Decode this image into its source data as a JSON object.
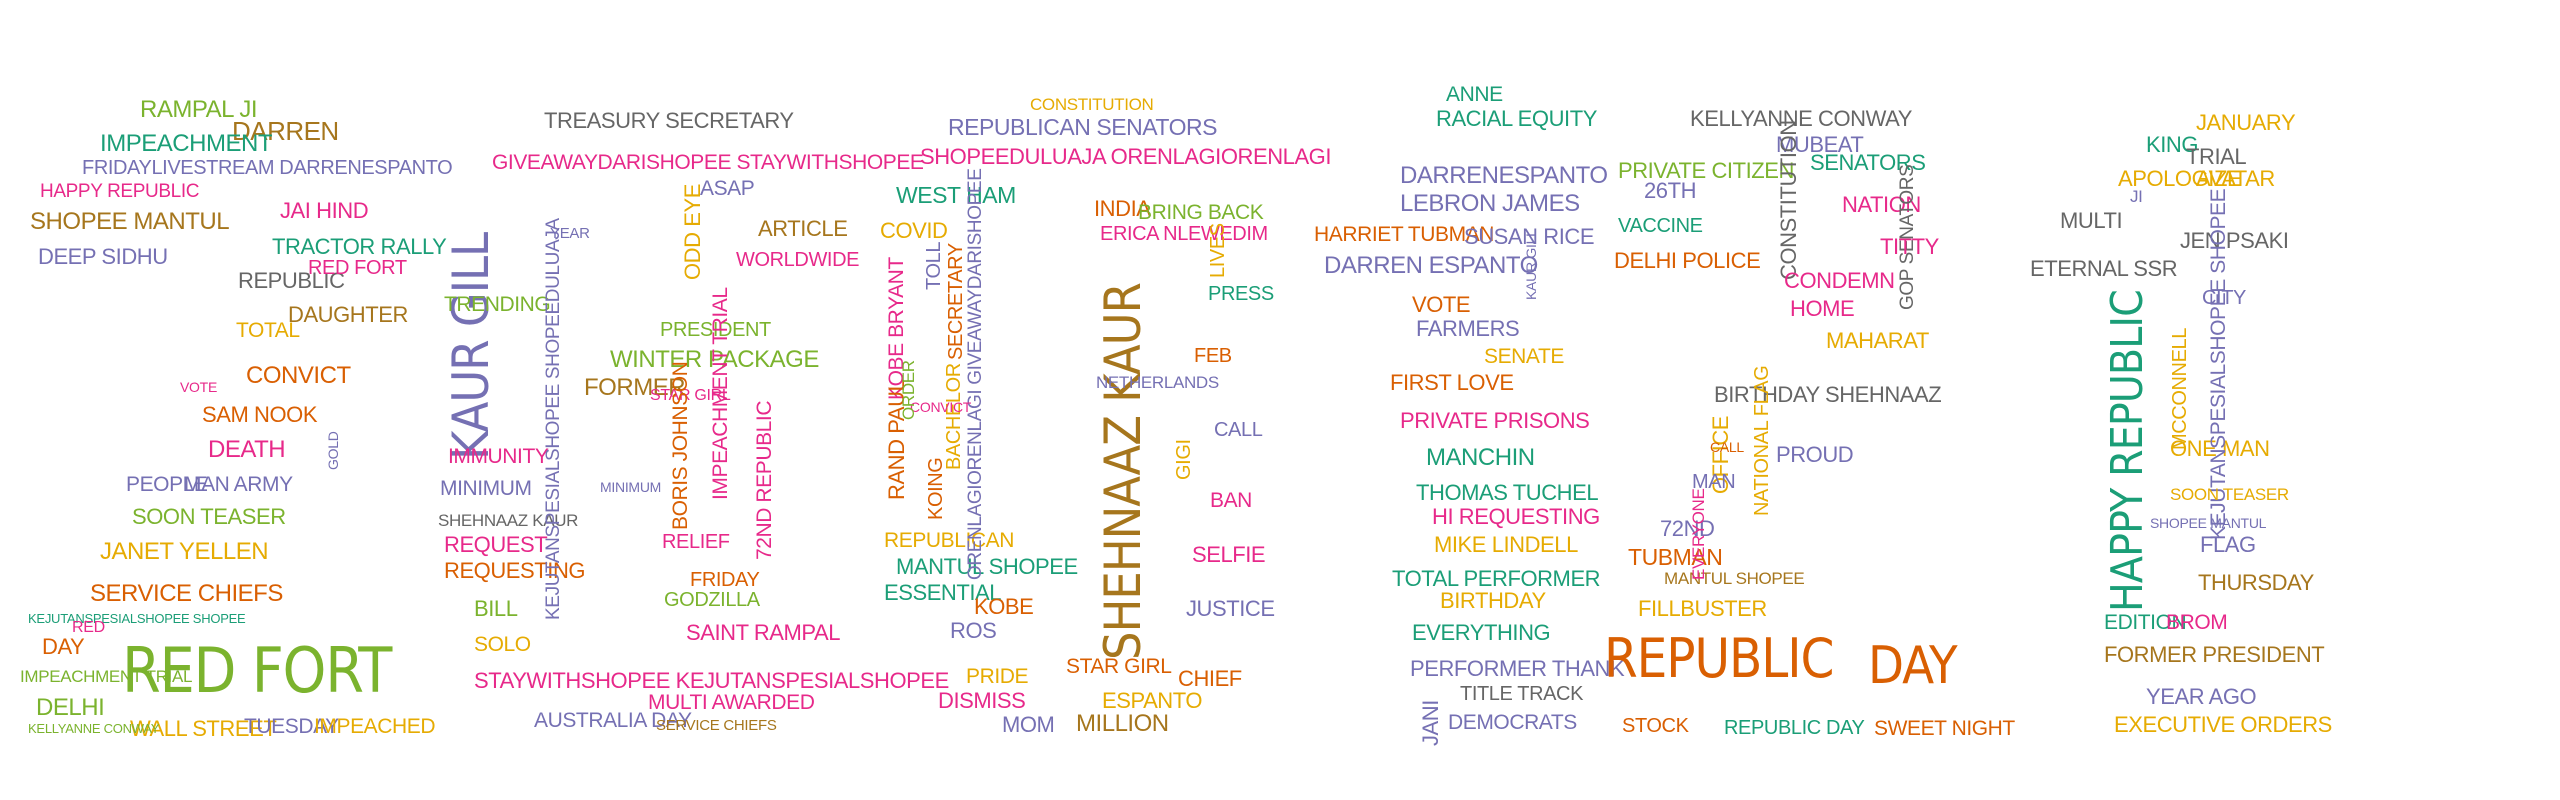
{
  "colors": {
    "green": "#7bb32e",
    "orange": "#e07b1a",
    "teal": "#1b9e77",
    "purple": "#7570b3",
    "pink": "#e7298a",
    "olive": "#a6761d",
    "gray": "#666666",
    "gold": "#e6ab02",
    "burnt": "#d95f02"
  },
  "words": {
    "w001": "RAMPAL JI",
    "w002": "DARREN",
    "w003": "IMPEACHMENT",
    "w004": "FRIDAYLIVESTREAM DARRENESPANTO",
    "w005": "HAPPY REPUBLIC",
    "w006": "SHOPEE MANTUL",
    "w007": "DEEP SIDHU",
    "w008": "JAI HIND",
    "w009": "TRACTOR RALLY",
    "w010": "REPUBLIC",
    "w011": "RED FORT",
    "w012": "DAUGHTER",
    "w013": "TOTAL",
    "w014": "CONVICT",
    "w015": "SAM NOOK",
    "w016": "DEATH",
    "w017": "PEOPLE",
    "w018": "MAN ARMY",
    "w019": "SOON TEASER",
    "w020": "JANET YELLEN",
    "w021": "SERVICE CHIEFS",
    "w022": "KEJUTANSPESIALSHOPEE SHOPEE",
    "w023": "RED FORT",
    "w024": "IMPEACHMENT TRIAL",
    "w025": "DELHI",
    "w026": "WALL STREET",
    "w027": "TUESDAY",
    "w028": "IMPEACHED",
    "w029": "KELLYANNE CONWAY",
    "w030": "TREASURY SECRETARY",
    "w031": "GIVEAWAYDARISHOPEE STAYWITHSHOPEE",
    "w032": "KAUR GILL",
    "w033": "TRENDING",
    "w034": "ASAP",
    "w035": "ARTICLE",
    "w036": "WORLDWIDE",
    "w037": "ODD EYE",
    "w038": "PRESIDENT",
    "w039": "WINTER PACKAGE",
    "w040": "FORMER",
    "w041": "STAR GIRL",
    "w042": "IMMUNITY",
    "w043": "MINIMUM",
    "w044": "SHEHNAAZ KAUR",
    "w045": "REQUEST",
    "w046": "REQUESTING",
    "w047": "BILL",
    "w048": "SOLO",
    "w049": "BORIS JOHNSON",
    "w050": "IMPEACHMENT TRIAL",
    "w051": "RELIEF",
    "w052": "FRIDAY",
    "w053": "GODZILLA",
    "w054": "SAINT RAMPAL",
    "w055": "STAYWITHSHOPEE KEJUTANSPESIALSHOPEE",
    "w056": "MULTI AWARDED",
    "w057": "AUSTRALIA DAY",
    "w058": "SERVICE CHIEFS",
    "w059": "KEJUTANSPESIALSHOPEE SHOPEEDULUAJA",
    "w060": "72ND REPUBLIC",
    "w061": "CONSTITUTION",
    "w062": "REPUBLICAN SENATORS",
    "w063": "SHOPEEDULUAJA ORENLAGIORENLAGI",
    "w064": "WEST HAM",
    "w065": "COVID",
    "w066": "INDIA",
    "w067": "BRING BACK",
    "w068": "ERICA NLEWEDIM",
    "w069": "SHEHNAAZ KAUR",
    "w070": "KOBE BRYANT",
    "w071": "RAND PAUL",
    "w072": "NETHERLANDS",
    "w073": "REPUBLICAN",
    "w074": "MANTUL SHOPEE",
    "w075": "ESSENTIAL",
    "w076": "KOBE",
    "w077": "JUSTICE",
    "w078": "SELFIE",
    "w079": "STAR GIRL",
    "w080": "PRIDE",
    "w081": "DISMISS",
    "w082": "MOM",
    "w083": "MILLION",
    "w084": "CHIEF",
    "w085": "ESPANTO",
    "w086": "ROS",
    "w087": "KOING",
    "w088": "ORENLAGIORENLAGI GIVEAWAYDARISHOPEE",
    "w089": "ANNE",
    "w090": "RACIAL EQUITY",
    "w091": "DARRENESPANTO",
    "w092": "LEBRON JAMES",
    "w093": "HARRIET TUBMAN",
    "w094": "DARREN ESPANTO",
    "w095": "SUSAN RICE",
    "w096": "VOTE",
    "w097": "FARMERS",
    "w098": "SENATE",
    "w099": "FIRST LOVE",
    "w100": "PRIVATE PRISONS",
    "w101": "MANCHIN",
    "w102": "THOMAS TUCHEL",
    "w103": "HI REQUESTING",
    "w104": "MIKE LINDELL",
    "w105": "TOTAL PERFORMER",
    "w106": "BIRTHDAY",
    "w107": "EVERYTHING",
    "w108": "PERFORMER THANK",
    "w109": "TITLE TRACK",
    "w110": "DEMOCRATS",
    "w111": "KELLYANNE CONWAY",
    "w112": "PRIVATE CITIZEN",
    "w113": "SENATORS",
    "w114": "NATION",
    "w115": "CONSTITUTION",
    "w116": "DELHI POLICE",
    "w117": "VACCINE",
    "w118": "CONDEMN",
    "w119": "GOP SENATORS",
    "w120": "HOME",
    "w121": "MAHARAT",
    "w122": "BIRTHDAY SHEHNAAZ",
    "w123": "NATIONAL FLAG",
    "w124": "PROUD",
    "w125": "OFFICE",
    "w126": "TUBMAN",
    "w127": "72ND",
    "w128": "MANTUL SHOPEE",
    "w129": "FILLBUSTER",
    "w130": "REPUBLIC",
    "w131": "DAY",
    "w132": "STOCK",
    "w133": "REPUBLIC DAY",
    "w134": "SWEET NIGHT",
    "w135": "JANUARY",
    "w136": "KING",
    "w137": "TRIAL",
    "w138": "APOLOGIZE",
    "w139": "AVATAR",
    "w140": "JEN PSAKI",
    "w141": "ETERNAL SSR",
    "w142": "HAPPY REPUBLIC",
    "w143": "ONE MAN",
    "w144": "KEJUTANSPESIALSHOPEE SHOPEE",
    "w145": "THURSDAY",
    "w146": "EDITION",
    "w147": "BROM",
    "w148": "FORMER PRESIDENT",
    "w149": "YEAR AGO",
    "w150": "EXECUTIVE ORDERS",
    "w151": "FLAG",
    "w152": "MULTI",
    "w153": "CITY",
    "w154": "MCCONNELL",
    "w155": "MUBEAT",
    "w156": "TITTY",
    "w157": "26TH",
    "w158": "LIVES",
    "w159": "PRESS",
    "w160": "FEB",
    "w161": "CALL",
    "w162": "BAN",
    "w163": "GIGI",
    "w164": "TOLL",
    "w165": "SECRETARY",
    "w166": "BACHELOR",
    "w167": "CONVICT",
    "w168": "ORDER",
    "w169": "JANI",
    "w170": "KAUR GILL",
    "w171": "MAN",
    "w172": "EVERYONE",
    "w173": "JI",
    "w174": "SOON TEASER",
    "w175": "SHOPEE MANTUL",
    "w176": "YEAR",
    "w177": "DAY",
    "w178": "RED",
    "w179": "VOTE",
    "w180": "GOLD",
    "w181": "CALL",
    "w182": "MINIMUM"
  }
}
